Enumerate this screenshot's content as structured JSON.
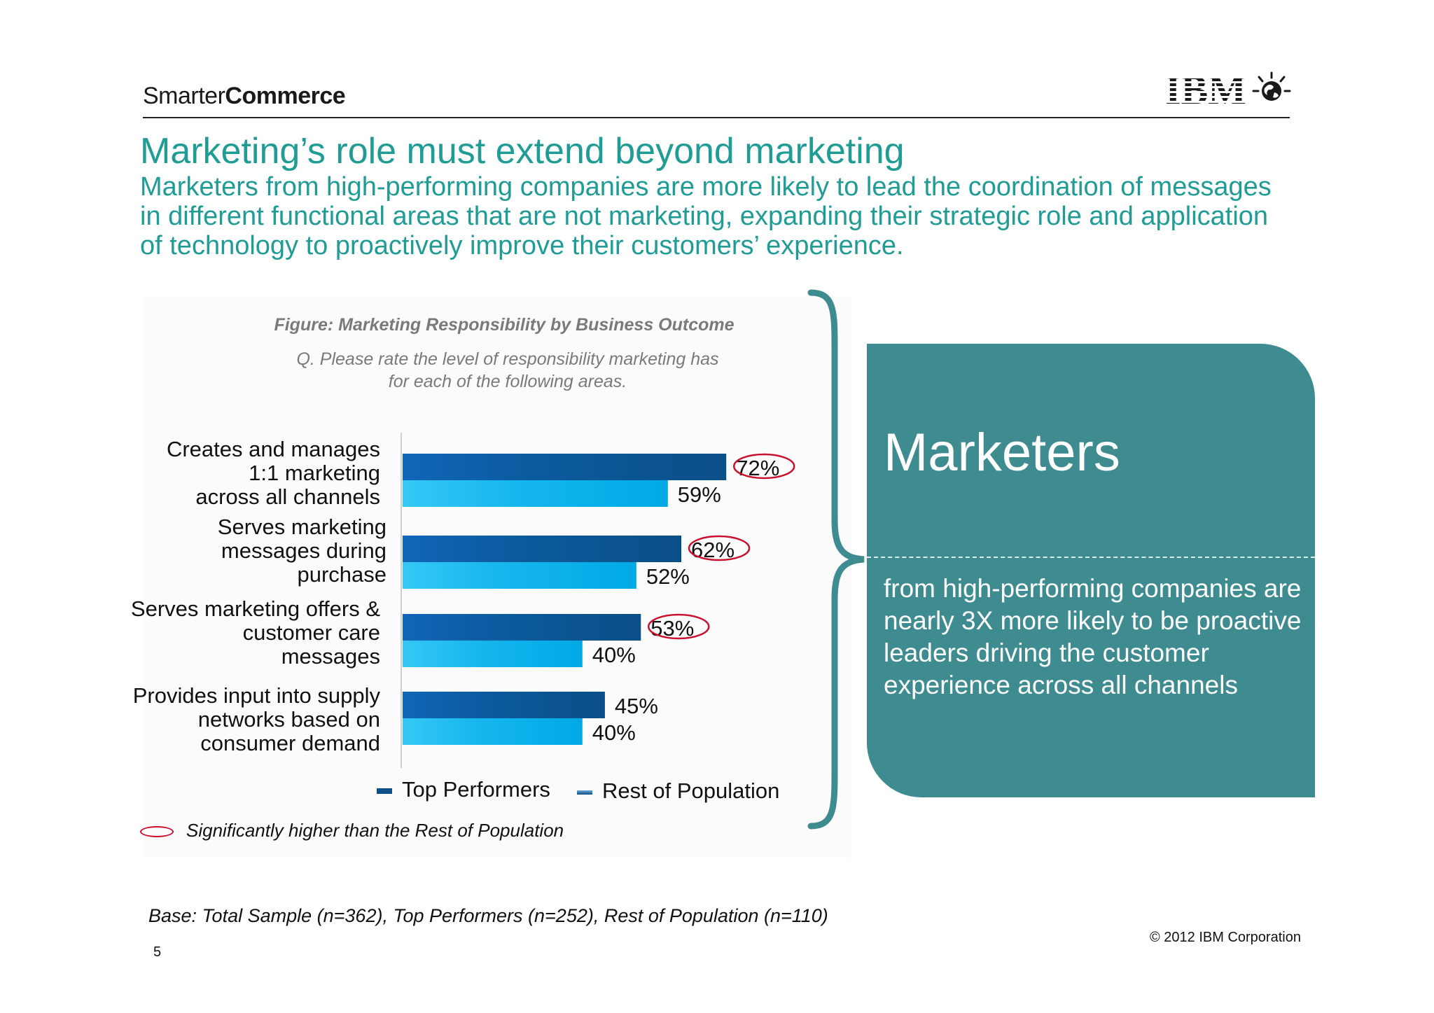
{
  "header": {
    "brand_light": "Smarter",
    "brand_bold": "Commerce",
    "logo_text": "IBM",
    "logo_icon": "globe-icon"
  },
  "title": "Marketing’s role must extend beyond marketing",
  "subtitle": "Marketers from high-performing companies are more likely to lead the coordination of messages in different functional areas that are not marketing, expanding their strategic role and application of technology to proactively improve their customers’ experience.",
  "figure": {
    "title": "Figure: Marketing Responsibility by Business Outcome",
    "question_line1": "Q. Please rate the level of responsibility marketing has",
    "question_line2": "for each of the following areas."
  },
  "chart_data": {
    "type": "bar",
    "orientation": "horizontal",
    "categories": [
      [
        "Creates and manages",
        "1:1 marketing",
        "across all channels"
      ],
      [
        "Serves marketing",
        "messages during",
        "purchase"
      ],
      [
        "Serves marketing offers &",
        "customer care",
        "messages"
      ],
      [
        "Provides input into supply",
        "networks based on",
        "consumer demand"
      ]
    ],
    "series": [
      {
        "name": "Top Performers",
        "values": [
          72,
          62,
          53,
          45
        ],
        "labels": [
          "72%",
          "62%",
          "53%",
          "45%"
        ],
        "color": "#0d4f86"
      },
      {
        "name": "Rest of Population",
        "values": [
          59,
          52,
          40,
          40
        ],
        "labels": [
          "59%",
          "52%",
          "40%",
          "40%"
        ],
        "color": "#00a9e6"
      }
    ],
    "significant_top_performers": [
      true,
      true,
      true,
      false
    ],
    "significance_color": "#c8102e",
    "xlim": [
      0,
      100
    ],
    "legend_position": "bottom",
    "grid": false
  },
  "legend": {
    "top_label": "Top Performers",
    "rest_label": "Rest of Population"
  },
  "significance_note": "Significantly higher than the Rest of Population",
  "callout": {
    "title": "Marketers",
    "body": "from high-performing companies are nearly 3X more likely to be proactive leaders driving the customer experience  across all channels",
    "bg_color": "#3e8c90",
    "accent_color": "#3e8c90"
  },
  "footer": {
    "base": "Base: Total Sample (n=362), Top Performers (n=252), Rest of Population (n=110)",
    "copyright": "© 2012 IBM Corporation",
    "page_number": "5"
  }
}
